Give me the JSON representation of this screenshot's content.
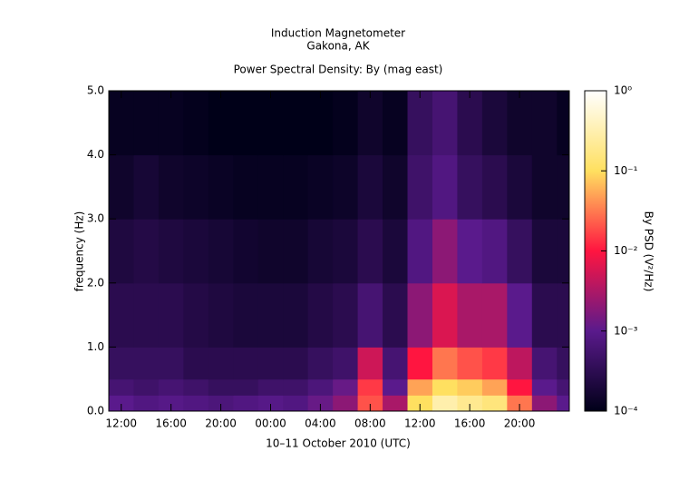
{
  "chart_data": {
    "type": "heatmap",
    "title": "Induction Magnetometer",
    "subtitle": "Gakona, AK",
    "plot_title": "Power Spectral Density: By (mag east)",
    "x_label": "10–11 October 2010 (UTC)",
    "y_label": "frequency (Hz)",
    "colorbar_label": "By PSD (V²/Hz)",
    "xlim": [
      11,
      48
    ],
    "xticks": [
      {
        "value": 12,
        "label": "12:00"
      },
      {
        "value": 16,
        "label": "16:00"
      },
      {
        "value": 20,
        "label": "20:00"
      },
      {
        "value": 24,
        "label": "00:00"
      },
      {
        "value": 28,
        "label": "04:00"
      },
      {
        "value": 32,
        "label": "08:00"
      },
      {
        "value": 36,
        "label": "12:00"
      },
      {
        "value": 40,
        "label": "16:00"
      },
      {
        "value": 44,
        "label": "20:00"
      }
    ],
    "ylim": [
      0,
      5
    ],
    "yticks": [
      {
        "value": 0,
        "label": "0.0"
      },
      {
        "value": 1,
        "label": "1.0"
      },
      {
        "value": 2,
        "label": "2.0"
      },
      {
        "value": 3,
        "label": "3.0"
      },
      {
        "value": 4,
        "label": "4.0"
      },
      {
        "value": 5,
        "label": "5.0"
      }
    ],
    "zlim": [
      0.0001,
      1
    ],
    "zscale": "log",
    "zticks": [
      {
        "value": 0.0001,
        "label": "10⁻⁴"
      },
      {
        "value": 0.001,
        "label": "10⁻³"
      },
      {
        "value": 0.01,
        "label": "10⁻²"
      },
      {
        "value": 0.1,
        "label": "10⁻¹"
      },
      {
        "value": 1,
        "label": "10⁰"
      }
    ],
    "colorscale": [
      "#000018",
      "#5a1a8c",
      "#ff1540",
      "#ffe060",
      "#ffffff"
    ],
    "x_edges": [
      11,
      13,
      15,
      17,
      19,
      21,
      23,
      25,
      27,
      29,
      31,
      33,
      35,
      37,
      39,
      41,
      43,
      45,
      47,
      48
    ],
    "y_edges": [
      0,
      0.25,
      0.5,
      1,
      2,
      3,
      4,
      5
    ],
    "z": [
      [
        0.001,
        0.0008,
        0.0009,
        0.0008,
        0.0007,
        0.0008,
        0.0009,
        0.0008,
        0.0012,
        0.002,
        0.02,
        0.003,
        0.1,
        0.3,
        0.2,
        0.15,
        0.03,
        0.002,
        0.001
      ],
      [
        0.0006,
        0.0005,
        0.0006,
        0.0005,
        0.0004,
        0.0004,
        0.0005,
        0.0005,
        0.0007,
        0.0012,
        0.015,
        0.001,
        0.05,
        0.1,
        0.08,
        0.05,
        0.01,
        0.001,
        0.0006
      ],
      [
        0.0004,
        0.0004,
        0.0004,
        0.0003,
        0.0003,
        0.0003,
        0.0003,
        0.0003,
        0.0004,
        0.0005,
        0.005,
        0.0006,
        0.01,
        0.03,
        0.02,
        0.015,
        0.004,
        0.0006,
        0.0004
      ],
      [
        0.0003,
        0.0003,
        0.0003,
        0.00025,
        0.00022,
        0.0002,
        0.0002,
        0.0002,
        0.00025,
        0.0003,
        0.0006,
        0.0003,
        0.002,
        0.006,
        0.003,
        0.003,
        0.001,
        0.0003,
        0.0003
      ],
      [
        0.00022,
        0.00025,
        0.00022,
        0.0002,
        0.00018,
        0.00016,
        0.00015,
        0.00015,
        0.00018,
        0.0002,
        0.0003,
        0.0002,
        0.0008,
        0.002,
        0.001,
        0.0008,
        0.0004,
        0.0002,
        0.0002
      ],
      [
        0.00015,
        0.00018,
        0.00015,
        0.00014,
        0.00013,
        0.00012,
        0.00012,
        0.00012,
        0.00013,
        0.00014,
        0.0002,
        0.00015,
        0.0005,
        0.0008,
        0.0004,
        0.0003,
        0.0002,
        0.00015,
        0.00015
      ],
      [
        0.00012,
        0.00012,
        0.00012,
        0.00011,
        0.0001,
        0.0001,
        0.0001,
        0.0001,
        0.0001,
        0.00011,
        0.00015,
        0.00012,
        0.0004,
        0.0006,
        0.0003,
        0.0002,
        0.00015,
        0.00015,
        0.00012
      ]
    ]
  }
}
